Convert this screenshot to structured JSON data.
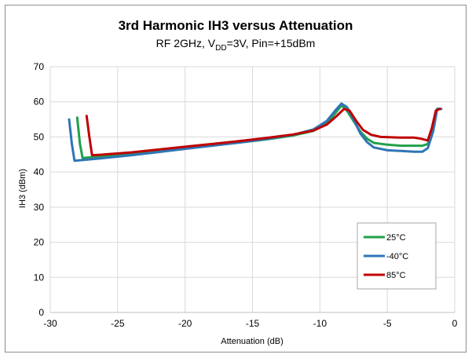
{
  "chart_data": {
    "type": "line",
    "title": "3rd Harmonic IH3 versus Attenuation",
    "subtitle": {
      "prefix": "RF 2GHz, V",
      "subscript": "DD",
      "suffix": "=3V, Pin=+15dBm"
    },
    "xlabel": "Attenuation (dB)",
    "ylabel": "IH3 (dBm)",
    "xlim": [
      -30,
      0
    ],
    "ylim": [
      0,
      70
    ],
    "xticks": [
      -30,
      -25,
      -20,
      -15,
      -10,
      -5,
      0
    ],
    "yticks": [
      0,
      10,
      20,
      30,
      40,
      50,
      60,
      70
    ],
    "grid": true,
    "legend_position": "bottom-right",
    "series": [
      {
        "name": "25°C",
        "color": "#21a04a",
        "points": [
          [
            -28.0,
            55.5
          ],
          [
            -27.8,
            48.0
          ],
          [
            -27.6,
            44.0
          ],
          [
            -26.0,
            44.5
          ],
          [
            -24,
            45.2
          ],
          [
            -22,
            46.0
          ],
          [
            -20,
            46.8
          ],
          [
            -18,
            47.6
          ],
          [
            -16,
            48.4
          ],
          [
            -14,
            49.3
          ],
          [
            -12,
            50.4
          ],
          [
            -10.5,
            51.7
          ],
          [
            -9.5,
            53.8
          ],
          [
            -8.8,
            57.0
          ],
          [
            -8.4,
            59.0
          ],
          [
            -8.0,
            57.5
          ],
          [
            -7.5,
            54.5
          ],
          [
            -7.0,
            51.5
          ],
          [
            -6.5,
            49.5
          ],
          [
            -6.0,
            48.3
          ],
          [
            -5.0,
            47.8
          ],
          [
            -4.0,
            47.5
          ],
          [
            -3.0,
            47.5
          ],
          [
            -2.4,
            47.5
          ],
          [
            -2.0,
            48.0
          ],
          [
            -1.6,
            52.5
          ],
          [
            -1.3,
            58.0
          ],
          [
            -1.0,
            58.0
          ]
        ]
      },
      {
        "name": "-40°C",
        "color": "#2e75b6",
        "points": [
          [
            -28.6,
            55.0
          ],
          [
            -28.4,
            48.0
          ],
          [
            -28.2,
            43.2
          ],
          [
            -26.0,
            44.0
          ],
          [
            -24,
            44.8
          ],
          [
            -22,
            45.7
          ],
          [
            -20,
            46.6
          ],
          [
            -18,
            47.5
          ],
          [
            -16,
            48.4
          ],
          [
            -14,
            49.4
          ],
          [
            -12,
            50.6
          ],
          [
            -10.5,
            52.1
          ],
          [
            -9.5,
            54.5
          ],
          [
            -8.8,
            57.8
          ],
          [
            -8.4,
            59.5
          ],
          [
            -8.0,
            58.5
          ],
          [
            -7.5,
            55.0
          ],
          [
            -7.0,
            51.0
          ],
          [
            -6.5,
            48.5
          ],
          [
            -6.0,
            47.0
          ],
          [
            -5.0,
            46.2
          ],
          [
            -4.0,
            46.0
          ],
          [
            -3.0,
            45.8
          ],
          [
            -2.4,
            45.8
          ],
          [
            -2.0,
            46.8
          ],
          [
            -1.6,
            51.5
          ],
          [
            -1.3,
            58.0
          ],
          [
            -1.0,
            58.0
          ]
        ]
      },
      {
        "name": "85°C",
        "color": "#c00000",
        "points": [
          [
            -27.3,
            56.0
          ],
          [
            -27.1,
            50.0
          ],
          [
            -26.9,
            44.8
          ],
          [
            -26.0,
            45.0
          ],
          [
            -24,
            45.6
          ],
          [
            -22,
            46.4
          ],
          [
            -20,
            47.2
          ],
          [
            -18,
            48.0
          ],
          [
            -16,
            48.8
          ],
          [
            -14,
            49.7
          ],
          [
            -12,
            50.7
          ],
          [
            -10.5,
            51.8
          ],
          [
            -9.5,
            53.5
          ],
          [
            -8.8,
            55.8
          ],
          [
            -8.2,
            58.0
          ],
          [
            -7.8,
            57.5
          ],
          [
            -7.3,
            54.5
          ],
          [
            -6.8,
            52.0
          ],
          [
            -6.2,
            50.6
          ],
          [
            -5.5,
            50.0
          ],
          [
            -4.0,
            49.8
          ],
          [
            -3.0,
            49.8
          ],
          [
            -2.5,
            49.5
          ],
          [
            -2.0,
            49.0
          ],
          [
            -1.7,
            52.5
          ],
          [
            -1.4,
            57.5
          ],
          [
            -1.1,
            58.0
          ]
        ]
      }
    ]
  }
}
